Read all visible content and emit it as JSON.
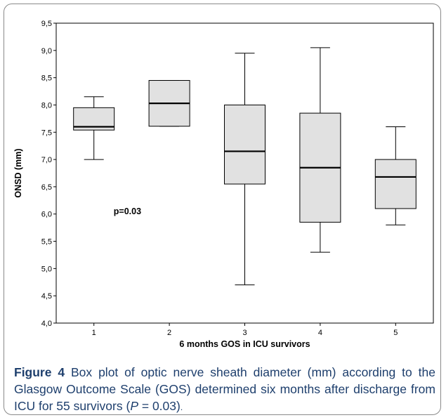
{
  "chart_data": {
    "type": "boxplot",
    "xlabel": "6 months GOS in ICU survivors",
    "ylabel": "ONSD (mm)",
    "ylim": [
      4.0,
      9.5
    ],
    "yticks": [
      "4,0",
      "4,5",
      "5,0",
      "5,5",
      "6,0",
      "6,5",
      "7,0",
      "7,5",
      "8,0",
      "8,5",
      "9,0",
      "9,5"
    ],
    "categories": [
      "1",
      "2",
      "3",
      "4",
      "5"
    ],
    "boxes": [
      {
        "category": "1",
        "whisker_low": 7.0,
        "q1": 7.54,
        "median": 7.6,
        "q3": 7.95,
        "whisker_high": 8.15
      },
      {
        "category": "2",
        "whisker_low": 7.61,
        "q1": 7.61,
        "median": 8.03,
        "q3": 8.45,
        "whisker_high": 8.45
      },
      {
        "category": "3",
        "whisker_low": 4.7,
        "q1": 6.55,
        "median": 7.15,
        "q3": 8.0,
        "whisker_high": 8.95
      },
      {
        "category": "4",
        "whisker_low": 5.3,
        "q1": 5.85,
        "median": 6.85,
        "q3": 7.85,
        "whisker_high": 9.05
      },
      {
        "category": "5",
        "whisker_low": 5.8,
        "q1": 6.1,
        "median": 6.68,
        "q3": 7.0,
        "whisker_high": 7.6
      }
    ],
    "annotation": "p=0.03",
    "grid": false,
    "colors": {
      "box_fill": "#e1e1e1",
      "line": "#000000",
      "caption_text": "#1e3f6d"
    }
  },
  "caption": {
    "label": "Figure 4",
    "text": " Box plot of optic nerve sheath diameter (mm) according to the Glasgow Outcome Scale (GOS) determined six months after discharge from ICU for 55 survivors (",
    "p_symbol": "P",
    "p_value": " = 0.03)",
    "end": "."
  }
}
